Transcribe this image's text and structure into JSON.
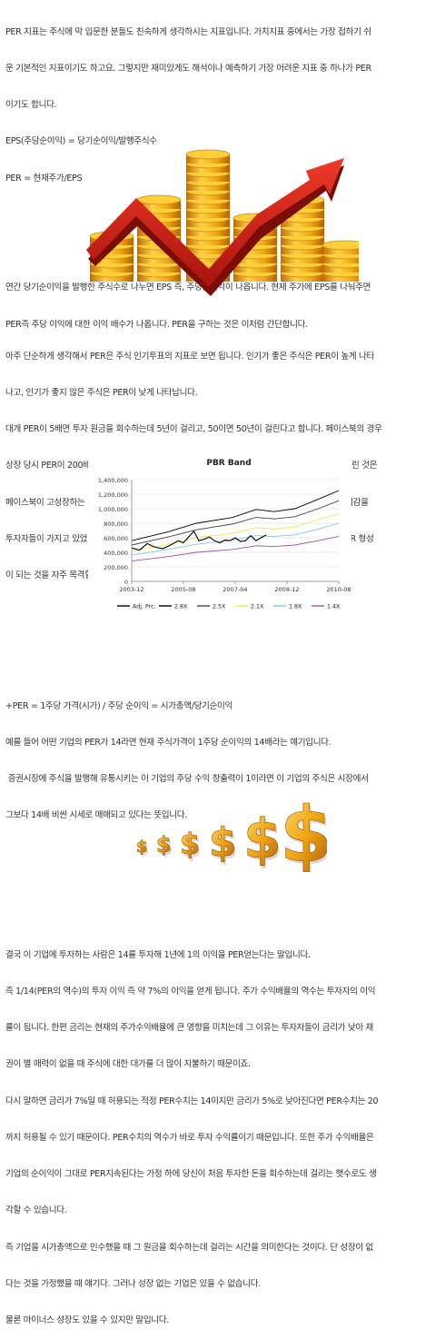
{
  "section1": {
    "lines": [
      "PER 지표는 주식에 막 입문한 분들도 친숙하게 생각하시는 지표입니다. 가치지표 중에서는 가장 접하기 쉬",
      "운 기본적인 지표이기도 하고요. 그렇지만 재미있게도 해석이나 예측하기 가장 어려운 지표 중 하나가 PER",
      "이기도 합니다.",
      "EPS(주당순이익) = 당기순이익/발행주식수",
      "PER = 현재주가/EPS",
      "",
      "",
      "연간 당기순이익을 발행한 주식수로 나누면 EPS 즉, 주당순이익이 나옵니다. 현재 주가에 EPS를 나눠주면",
      "PER즉 주당 이익에 대한 이익 배수가 나옵니다. PER을 구하는 것은 이처럼 간단합니다."
    ]
  },
  "section2": {
    "lines": [
      "아주 단순하게 생각해서 PER은 주식 인기투표의 지표로 보면 됩니다. 인기가 좋은 주식은 PER이 높게 나타",
      "나고, 인기가 좋지 않은 주식은 PER이 낮게 나타납니다.",
      "대개 PER이 5배면 투자 원금을 회수하는데 5년이 걸리고, 50이면 50년이 걸린다고 합니다. 페이스북의 경우",
      "상장 당시 PER이 200배 육박했는데 투자 원금을 회수하는데 200년이나 걸리는 회사에 투자금이 몰린 것은",
      "페이스북이 고성장하는 회사라 원금 회수 기간을 줄이고도 높은 수익률을 안겨줄 수 있을 거라는 기대감을",
      "투자자들이 가지고 있었기 때문입니다. 주로 신성장 산업 분야에서 빠른 성장 기대감에 의한 높은 PER 형성",
      "이 되는 것을 자주 목격할 수 있습니다."
    ]
  },
  "section3": {
    "lines": [
      "+PER = 1주당 가격(시가) / 주당 순이익 = 시가총액/당기순이익",
      "예를 들어 어떤 기업의 PER가 14라면 현재 주식가격이 1주당 순이익의 14배라는 얘기입니다.",
      " 증권시장에 주식을 발행해 유통시키는 이 기업의 주당 수익 창출력이 1이라면 이 기업의 주식은 시장에서",
      "그보다 14배 비싼 시세로 매매되고 있다는 뜻입니다."
    ]
  },
  "section4": {
    "lines": [
      "결국 이 기업에 투자하는 사람은 14를 투자해 1년에 1의 이익을 PER얻는다는 말입니다.",
      "즉 1/14(PER의 역수)의 투자 이익 즉 약 7%의 이익을 얻게 됩니다. 주가 수익배율의 역수는 투자자의 이익",
      "률이 됩니다. 한편 금리는 현재의 주가수익배율에 큰 영향을 미치는데 그 이유는 투자자들이 금리가 낮아 채",
      "권이 별 매력이 없을 때 주식에 대한 대가를 더 많이 지불하기 때문이죠.",
      "다시 말하면 금리가 7%일 때 허용되는 적정 PER수치는 14이지만 금리가 5%로 낮아진다면 PER수치는 20",
      "까지 허용될 수 있기 때문이다. PER수치의 역수가 바로 투자 수익률이기 때문입니다. 또한 주가 수익배율은",
      "기업의 순이익이 그대로 PER지속된다는 가정 하에 당신이 처음 투자한 돈을 회수하는데 걸리는 햇수로도 생",
      "각할 수 있습니다.",
      "즉 기업을 시가총액으로 인수했을 때 그 원금을 회수하는데 걸리는 시간을 의미한다는 것이다. 단 성장이 없",
      "다는 것을 가정했을 때 얘기다. 그러나 성장 없는 기업은 있을 수 없습니다.",
      "물론 마이너스 성장도 있을 수 있지만 말입니다."
    ]
  },
  "chart_data": {
    "type": "line",
    "title": "PBR Band",
    "x_tick_labels": [
      "2003-12",
      "2005-08",
      "2007-04",
      "2008-12",
      "2010-08"
    ],
    "x_range": [
      2003.92,
      2010.58
    ],
    "y_tick_labels": [
      "0",
      "200,000",
      "400,000",
      "600,000",
      "800,000",
      "1,000,000",
      "1,200,000",
      "1,400,000"
    ],
    "ylim": [
      0,
      1400000
    ],
    "grid": true,
    "legend_position": "bottom",
    "series": [
      {
        "name": "Adj. Prc.",
        "color": "#000000",
        "x": [
          2003.92,
          2004.17,
          2004.42,
          2004.67,
          2004.92,
          2005.17,
          2005.42,
          2005.58,
          2005.75,
          2005.92,
          2006.08,
          2006.25,
          2006.42,
          2006.58,
          2006.75,
          2006.92,
          2007.08,
          2007.25,
          2007.42,
          2007.58,
          2007.75,
          2007.92,
          2008.08,
          2008.25
        ],
        "values": [
          460000,
          430000,
          520000,
          470000,
          450000,
          500000,
          560000,
          530000,
          610000,
          690000,
          560000,
          580000,
          610000,
          560000,
          530000,
          570000,
          560000,
          600000,
          550000,
          560000,
          630000,
          560000,
          600000,
          640000
        ]
      },
      {
        "name": "2.8X",
        "color": "#000000",
        "x": [
          2003.92,
          2005.08,
          2006.0,
          2007.17,
          2007.92,
          2008.5,
          2009.17,
          2009.92,
          2010.58
        ],
        "values": [
          560000,
          680000,
          800000,
          880000,
          990000,
          960000,
          1000000,
          1130000,
          1250000
        ]
      },
      {
        "name": "2.5X",
        "color": "#444444",
        "x": [
          2003.92,
          2005.08,
          2006.0,
          2007.17,
          2007.92,
          2008.5,
          2009.17,
          2009.92,
          2010.58
        ],
        "values": [
          500000,
          610000,
          710000,
          790000,
          880000,
          860000,
          890000,
          1000000,
          1110000
        ]
      },
      {
        "name": "2.1X",
        "color": "#f4e14e",
        "x": [
          2003.92,
          2005.08,
          2006.0,
          2007.17,
          2007.92,
          2008.5,
          2009.17,
          2009.92,
          2010.58
        ],
        "values": [
          420000,
          510000,
          600000,
          660000,
          740000,
          720000,
          750000,
          850000,
          930000
        ]
      },
      {
        "name": "1.8X",
        "color": "#7fc8ea",
        "x": [
          2003.92,
          2005.08,
          2006.0,
          2007.17,
          2007.92,
          2008.5,
          2009.17,
          2009.92,
          2010.58
        ],
        "values": [
          360000,
          440000,
          510000,
          570000,
          630000,
          620000,
          640000,
          720000,
          800000
        ]
      },
      {
        "name": "1.4X",
        "color": "#a64ea6",
        "x": [
          2003.92,
          2005.08,
          2006.0,
          2007.17,
          2007.92,
          2008.5,
          2009.17,
          2009.92,
          2010.58
        ],
        "values": [
          280000,
          340000,
          400000,
          440000,
          490000,
          480000,
          500000,
          560000,
          620000
        ]
      }
    ]
  },
  "colors": {
    "gold": "#f2a413",
    "gold_dark": "#c06a05",
    "arrow_red": "#d8261a",
    "text": "#333333"
  },
  "illustrations": {
    "coins_chart": "stacked gold coins with red upward zigzag arrow",
    "dollars": "row of golden dollar signs growing in size"
  }
}
